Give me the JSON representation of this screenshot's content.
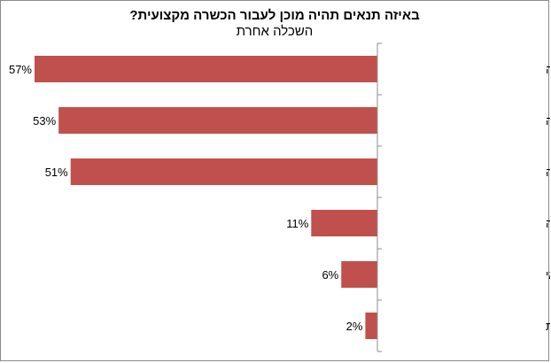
{
  "chart_data": {
    "type": "bar",
    "orientation": "horizontal",
    "direction": "rtl",
    "title": "באיזה תנאים תהיה מוכן לעבור הכשרה מקצועית?",
    "subtitle": "השכלה אחרת",
    "categories": [
      "דמי קיום בגובה דמי אבטלה",
      "אפשרות בחירת תחום ההכשרה",
      "עבודה מובטחת בתחום ההכשרה",
      "מעורבות מעסיק בהכשרה",
      "מוכנים ללא כל תנאי",
      "לא יודע/ת"
    ],
    "values": [
      57,
      53,
      51,
      11,
      6,
      2
    ],
    "data_labels": [
      "57%",
      "53%",
      "51%",
      "11%",
      "6%",
      "2%"
    ],
    "xlim": [
      0,
      60
    ],
    "bar_color": "#c0504d",
    "axis_color": "#8c8c8c",
    "grid": false,
    "legend": "none"
  }
}
